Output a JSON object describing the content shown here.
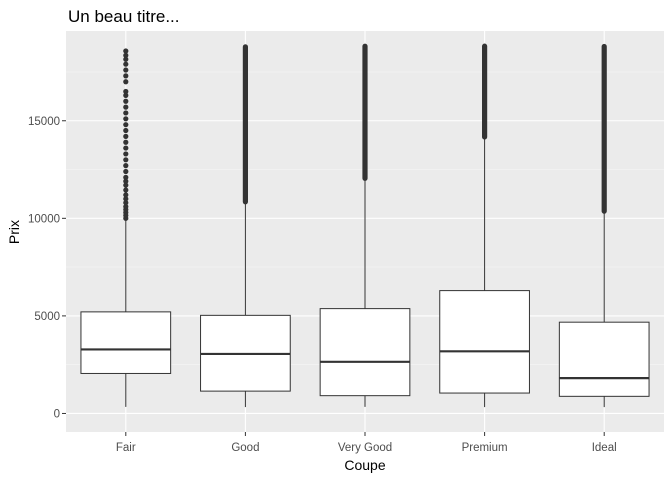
{
  "colors": {
    "panel_bg": "#EBEBEB",
    "grid_major": "#FFFFFF",
    "grid_minor": "#F5F5F5",
    "box_fill": "#FFFFFF",
    "box_stroke": "#333333",
    "outlier": "#333333",
    "tick": "#333333"
  },
  "chart_data": {
    "type": "boxplot",
    "title": "Un beau titre...",
    "xlabel": "Coupe",
    "ylabel": "Prix",
    "categories": [
      "Fair",
      "Good",
      "Very Good",
      "Premium",
      "Ideal"
    ],
    "ylim": [
      -950,
      19600
    ],
    "yticks": [
      0,
      5000,
      10000,
      15000
    ],
    "ytick_labels": [
      "0",
      "5000",
      "10000",
      "15000"
    ],
    "grid": true,
    "boxes": [
      {
        "category": "Fair",
        "min": 337,
        "q1": 2050,
        "median": 3282,
        "q3": 5206,
        "whisker_high": 9950,
        "outliers_from": 9950,
        "max": 18574
      },
      {
        "category": "Good",
        "min": 327,
        "q1": 1145,
        "median": 3050,
        "q3": 5028,
        "whisker_high": 10850,
        "outliers_from": 10850,
        "max": 18788
      },
      {
        "category": "Very Good",
        "min": 336,
        "q1": 912,
        "median": 2648,
        "q3": 5373,
        "whisker_high": 12050,
        "outliers_from": 12050,
        "max": 18818
      },
      {
        "category": "Premium",
        "min": 326,
        "q1": 1046,
        "median": 3185,
        "q3": 6296,
        "whisker_high": 14170,
        "outliers_from": 14170,
        "max": 18823
      },
      {
        "category": "Ideal",
        "min": 326,
        "q1": 878,
        "median": 1810,
        "q3": 4678,
        "whisker_high": 10370,
        "outliers_from": 10370,
        "max": 18806
      }
    ],
    "sparse_outliers": {
      "Fair": [
        10000,
        10150,
        10300,
        10450,
        10600,
        10800,
        11000,
        11200,
        11450,
        11700,
        11900,
        12100,
        12400,
        12700,
        13000,
        13300,
        13600,
        13900,
        14200,
        14500,
        14800,
        15100,
        15400,
        15700,
        16000,
        16300,
        16500,
        17000,
        17300,
        17600,
        17900,
        18150,
        18350,
        18574
      ]
    }
  }
}
